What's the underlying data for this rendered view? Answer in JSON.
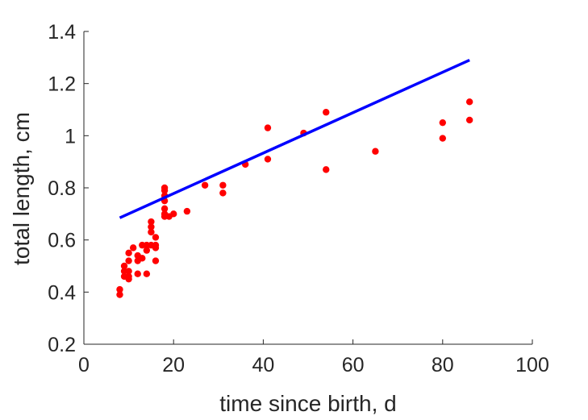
{
  "chart_data": {
    "type": "scatter",
    "xlabel": "time since birth, d",
    "ylabel": "total length, cm",
    "xlim": [
      0,
      100
    ],
    "ylim": [
      0.2,
      1.4
    ],
    "xticks": [
      0,
      20,
      40,
      60,
      80,
      100
    ],
    "yticks": [
      0.2,
      0.4,
      0.6,
      0.8,
      1.0,
      1.2,
      1.4
    ],
    "xtick_labels": [
      "0",
      "20",
      "40",
      "60",
      "80",
      "100"
    ],
    "ytick_labels": [
      "0.2",
      "0.4",
      "0.6",
      "0.8",
      "1",
      "1.2",
      "1.4"
    ],
    "grid": false,
    "series": [
      {
        "type": "scatter",
        "color": "#ff0000",
        "points": [
          [
            8,
            0.41
          ],
          [
            8,
            0.39
          ],
          [
            9,
            0.5
          ],
          [
            9,
            0.48
          ],
          [
            9,
            0.46
          ],
          [
            10,
            0.55
          ],
          [
            10,
            0.52
          ],
          [
            10,
            0.48
          ],
          [
            10,
            0.46
          ],
          [
            10,
            0.45
          ],
          [
            11,
            0.57
          ],
          [
            12,
            0.54
          ],
          [
            12,
            0.52
          ],
          [
            12,
            0.47
          ],
          [
            13,
            0.58
          ],
          [
            13,
            0.53
          ],
          [
            14,
            0.58
          ],
          [
            14,
            0.56
          ],
          [
            14,
            0.47
          ],
          [
            15,
            0.67
          ],
          [
            15,
            0.65
          ],
          [
            15,
            0.63
          ],
          [
            15,
            0.58
          ],
          [
            16,
            0.61
          ],
          [
            16,
            0.58
          ],
          [
            16,
            0.57
          ],
          [
            16,
            0.52
          ],
          [
            18,
            0.8
          ],
          [
            18,
            0.79
          ],
          [
            18,
            0.77
          ],
          [
            18,
            0.75
          ],
          [
            18,
            0.72
          ],
          [
            18,
            0.7
          ],
          [
            18,
            0.69
          ],
          [
            19,
            0.69
          ],
          [
            20,
            0.7
          ],
          [
            23,
            0.71
          ],
          [
            27,
            0.81
          ],
          [
            31,
            0.81
          ],
          [
            31,
            0.78
          ],
          [
            36,
            0.89
          ],
          [
            41,
            1.03
          ],
          [
            41,
            0.91
          ],
          [
            49,
            1.01
          ],
          [
            54,
            1.09
          ],
          [
            54,
            0.87
          ],
          [
            65,
            0.94
          ],
          [
            80,
            1.05
          ],
          [
            80,
            0.99
          ],
          [
            86,
            1.13
          ],
          [
            86,
            1.06
          ]
        ]
      },
      {
        "type": "line",
        "color": "#0000ff",
        "points": [
          [
            8,
            0.685
          ],
          [
            86,
            1.29
          ]
        ]
      }
    ]
  }
}
